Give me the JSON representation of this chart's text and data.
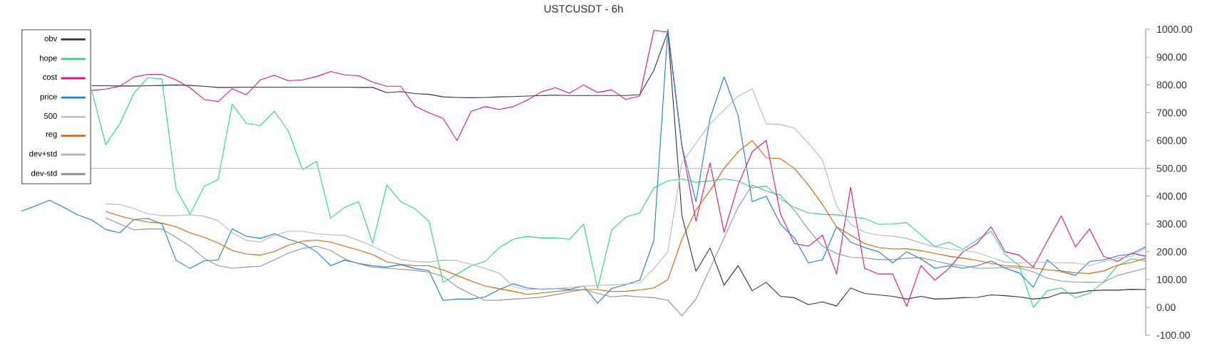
{
  "chart_data": {
    "type": "line",
    "title": "USTCUSDT - 6h",
    "categories": [
      null,
      null,
      null,
      null,
      null,
      null,
      null,
      null,
      null,
      null,
      null,
      null,
      null,
      null,
      null,
      null,
      null,
      null,
      null,
      null,
      null,
      null,
      null,
      null,
      null,
      null,
      null,
      null,
      null,
      null,
      null,
      null,
      null,
      null,
      null,
      null,
      null,
      null,
      null,
      null,
      null,
      null,
      null,
      null,
      null,
      null,
      null,
      null,
      null,
      null,
      null,
      null,
      null,
      null,
      null,
      null,
      null,
      null,
      null,
      null,
      null,
      null,
      null,
      null,
      null,
      null,
      null,
      null,
      null,
      null,
      null,
      null,
      null,
      null,
      null,
      null,
      null,
      null,
      null,
      null,
      null
    ],
    "series": [
      {
        "name": "obv",
        "color": "#333333",
        "values": [
          null,
          null,
          null,
          null,
          null,
          797,
          797,
          796,
          796,
          797,
          798,
          800,
          798,
          795,
          791,
          791,
          792,
          792,
          792,
          792,
          792,
          792,
          792,
          792,
          791,
          791,
          772,
          776,
          769,
          766,
          757,
          755,
          754,
          755,
          757,
          758,
          760,
          762,
          763,
          762,
          762,
          762,
          762,
          762,
          765,
          852,
          991,
          330,
          130,
          214,
          80,
          150,
          60,
          90,
          40,
          35,
          10,
          20,
          5,
          70,
          50,
          45,
          40,
          30,
          40,
          30,
          32,
          35,
          36,
          45,
          42,
          38,
          30,
          35,
          52,
          51,
          60,
          62,
          62,
          65,
          64
        ]
      },
      {
        "name": "hope",
        "color": "#22dd77",
        "values": [
          null,
          null,
          null,
          null,
          null,
          780,
          585,
          660,
          770,
          826,
          821,
          427,
          335,
          435,
          460,
          731,
          662,
          654,
          705,
          634,
          496,
          525,
          321,
          360,
          380,
          231,
          440,
          380,
          355,
          310,
          90,
          120,
          150,
          165,
          215,
          245,
          255,
          250,
          250,
          245,
          299,
          68,
          278,
          325,
          340,
          430,
          455,
          462,
          450,
          455,
          462,
          455,
          430,
          436,
          390,
          360,
          340,
          335,
          333,
          325,
          320,
          299,
          300,
          305,
          261,
          219,
          235,
          209,
          243,
          274,
          190,
          150,
          0,
          60,
          70,
          35,
          51,
          90,
          150,
          175,
          167
        ]
      },
      {
        "name": "cost",
        "color": "#e6127f",
        "values": [
          null,
          null,
          null,
          null,
          null,
          780,
          785,
          795,
          828,
          838,
          838,
          818,
          790,
          748,
          740,
          786,
          765,
          818,
          835,
          815,
          818,
          830,
          848,
          836,
          833,
          810,
          795,
          795,
          724,
          700,
          680,
          600,
          705,
          722,
          712,
          722,
          745,
          775,
          790,
          770,
          800,
          773,
          782,
          748,
          760,
          996,
          990,
          580,
          310,
          520,
          270,
          440,
          560,
          600,
          338,
          230,
          220,
          260,
          120,
          432,
          140,
          120,
          120,
          4,
          150,
          98,
          140,
          200,
          230,
          290,
          200,
          188,
          145,
          239,
          329,
          218,
          282,
          184,
          165,
          195,
          184
        ]
      },
      {
        "name": "price",
        "color": "#1a7de0",
        "values": [
          346,
          365,
          385,
          360,
          333,
          315,
          280,
          268,
          316,
          320,
          300,
          170,
          140,
          167,
          171,
          282,
          256,
          248,
          265,
          245,
          230,
          200,
          150,
          170,
          158,
          150,
          145,
          154,
          140,
          132,
          25,
          30,
          30,
          38,
          64,
          85,
          70,
          65,
          68,
          65,
          77,
          15,
          68,
          82,
          98,
          240,
          1000,
          580,
          380,
          680,
          829,
          690,
          380,
          400,
          300,
          250,
          160,
          171,
          290,
          235,
          215,
          200,
          160,
          200,
          175,
          141,
          150,
          141,
          150,
          167,
          141,
          124,
          73,
          171,
          128,
          115,
          165,
          171,
          185,
          192,
          218
        ]
      },
      {
        "name": "reg",
        "color": "#e06000",
        "values": [
          null,
          null,
          null,
          null,
          null,
          null,
          345,
          329,
          316,
          307,
          303,
          290,
          268,
          252,
          232,
          205,
          192,
          188,
          201,
          224,
          238,
          242,
          235,
          220,
          206,
          190,
          164,
          155,
          150,
          150,
          135,
          115,
          95,
          77,
          67,
          58,
          47,
          52,
          57,
          62,
          64,
          64,
          57,
          58,
          63,
          70,
          100,
          245,
          350,
          420,
          500,
          560,
          600,
          538,
          535,
          500,
          440,
          370,
          290,
          260,
          230,
          215,
          210,
          211,
          204,
          194,
          184,
          177,
          169,
          158,
          150,
          148,
          142,
          135,
          131,
          124,
          122,
          131,
          152,
          162,
          177
        ]
      },
      {
        "name": "dev+std",
        "color": "#b4b9be",
        "values": [
          null,
          null,
          null,
          null,
          null,
          null,
          372,
          370,
          356,
          336,
          330,
          330,
          333,
          328,
          312,
          268,
          241,
          235,
          259,
          274,
          274,
          265,
          261,
          259,
          241,
          220,
          195,
          172,
          165,
          163,
          170,
          168,
          155,
          140,
          123,
          75,
          64,
          66,
          68,
          72,
          76,
          79,
          81,
          84,
          88,
          140,
          200,
          520,
          590,
          660,
          710,
          760,
          786,
          660,
          658,
          645,
          590,
          530,
          365,
          300,
          270,
          260,
          256,
          248,
          232,
          218,
          210,
          205,
          197,
          180,
          163,
          160,
          162,
          162,
          160,
          160,
          150,
          165,
          177,
          183,
          214
        ]
      },
      {
        "name": "dev-std",
        "color": "#8c9399",
        "values": [
          null,
          null,
          null,
          null,
          null,
          null,
          322,
          300,
          279,
          282,
          282,
          252,
          220,
          177,
          150,
          141,
          145,
          148,
          171,
          195,
          212,
          220,
          205,
          175,
          157,
          145,
          141,
          137,
          133,
          127,
          112,
          74,
          48,
          25,
          26,
          30,
          33,
          37,
          46,
          55,
          64,
          50,
          38,
          42,
          38,
          35,
          26,
          -30,
          30,
          140,
          250,
          360,
          440,
          418,
          404,
          350,
          280,
          220,
          194,
          180,
          178,
          172,
          172,
          177,
          179,
          167,
          156,
          150,
          141,
          141,
          144,
          142,
          128,
          105,
          95,
          91,
          90,
          91,
          115,
          128,
          141
        ]
      }
    ],
    "ylim": [
      -100,
      1000
    ],
    "yticks": [
      {
        "value": -100,
        "label": "-100.00"
      },
      {
        "value": 0,
        "label": "0.00"
      },
      {
        "value": 100,
        "label": "100.00"
      },
      {
        "value": 200,
        "label": "200.00"
      },
      {
        "value": 300,
        "label": "300.00"
      },
      {
        "value": 400,
        "label": "400.00"
      },
      {
        "value": 500,
        "label": "500.00"
      },
      {
        "value": 600,
        "label": "600.00"
      },
      {
        "value": 700,
        "label": "700.00"
      },
      {
        "value": 800,
        "label": "800.00"
      },
      {
        "value": 900,
        "label": "900.00"
      },
      {
        "value": 1000,
        "label": "1000.00"
      }
    ],
    "ref_lines": [
      {
        "axis": "y",
        "value": 500,
        "label": "500",
        "color": "#c4c4c4"
      }
    ],
    "tick_labels": "y",
    "legend": "top left"
  }
}
